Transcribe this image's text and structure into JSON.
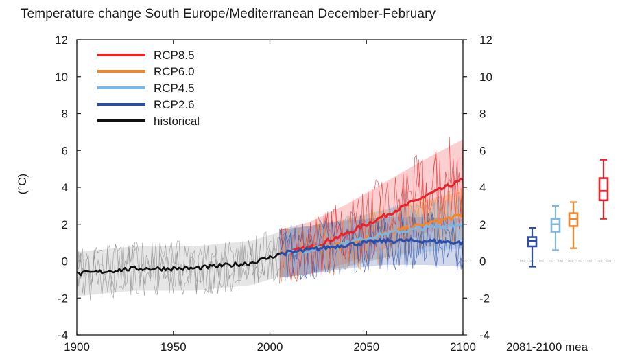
{
  "title": "Temperature change South Europe/Mediterranean December-February",
  "colors": {
    "rcp85": "#e8232a",
    "rcp60": "#f0862d",
    "rcp45": "#7fb6e0",
    "rcp26": "#2d4ea8",
    "historical": "#111111",
    "historical_members": "#8c8c8c",
    "zero_line": "#333333"
  },
  "chart_data": {
    "type": "line",
    "ylabel": "(°C)",
    "xlim": [
      1900,
      2100
    ],
    "ylim": [
      -4,
      12
    ],
    "x_ticks": [
      "1900",
      "1950",
      "2000",
      "2050",
      "2100"
    ],
    "y_ticks_left": [
      "-4",
      "-2",
      "0",
      "2",
      "4",
      "6",
      "8",
      "10",
      "12"
    ],
    "y_ticks_right": [
      "-4",
      "-2",
      "0",
      "2",
      "4",
      "6",
      "8",
      "10",
      "12"
    ],
    "legend": {
      "position": "top-left",
      "entries": [
        "RCP8.5",
        "RCP6.0",
        "RCP4.5",
        "RCP2.6",
        "historical"
      ]
    },
    "series": [
      {
        "name": "historical",
        "x": [
          1900,
          1910,
          1920,
          1930,
          1940,
          1950,
          1960,
          1970,
          1980,
          1990,
          2000,
          2005
        ],
        "values": [
          -0.7,
          -0.6,
          -0.5,
          -0.4,
          -0.4,
          -0.4,
          -0.4,
          -0.3,
          -0.2,
          -0.1,
          0.2,
          0.4
        ],
        "ensemble_spread": [
          1.2,
          1.2,
          1.2,
          1.2,
          1.2,
          1.2,
          1.2,
          1.2,
          1.2,
          1.2,
          1.2,
          1.2
        ]
      },
      {
        "name": "RCP2.6",
        "x": [
          2005,
          2020,
          2040,
          2060,
          2080,
          2100
        ],
        "values": [
          0.4,
          0.6,
          0.9,
          1.1,
          1.1,
          1.0
        ],
        "ensemble_spread": [
          1.3,
          1.3,
          1.3,
          1.3,
          1.3,
          1.3
        ]
      },
      {
        "name": "RCP4.5",
        "x": [
          2005,
          2020,
          2040,
          2060,
          2080,
          2100
        ],
        "values": [
          0.4,
          0.6,
          1.0,
          1.5,
          1.8,
          2.0
        ],
        "ensemble_spread": [
          1.3,
          1.3,
          1.3,
          1.3,
          1.3,
          1.3
        ]
      },
      {
        "name": "RCP6.0",
        "x": [
          2005,
          2020,
          2040,
          2060,
          2080,
          2100
        ],
        "values": [
          0.4,
          0.6,
          1.0,
          1.5,
          2.0,
          2.5
        ],
        "ensemble_spread": [
          1.3,
          1.3,
          1.3,
          1.3,
          1.3,
          1.3
        ]
      },
      {
        "name": "RCP8.5",
        "x": [
          2005,
          2020,
          2040,
          2060,
          2080,
          2100
        ],
        "values": [
          0.4,
          0.7,
          1.5,
          2.5,
          3.5,
          4.4
        ],
        "ensemble_spread": [
          1.3,
          1.4,
          1.6,
          1.8,
          2.0,
          2.2
        ]
      }
    ],
    "boxplots": {
      "label": "2081-2100 mea",
      "boxes": [
        {
          "name": "RCP2.6",
          "min": -0.3,
          "q1": 0.8,
          "median": 1.1,
          "q3": 1.3,
          "max": 1.8
        },
        {
          "name": "RCP4.5",
          "min": 0.6,
          "q1": 1.6,
          "median": 2.0,
          "q3": 2.3,
          "max": 3.0
        },
        {
          "name": "RCP6.0",
          "min": 0.7,
          "q1": 1.9,
          "median": 2.3,
          "q3": 2.6,
          "max": 3.2
        },
        {
          "name": "RCP8.5",
          "min": 2.3,
          "q1": 3.3,
          "median": 3.8,
          "q3": 4.5,
          "max": 5.5
        }
      ]
    }
  }
}
